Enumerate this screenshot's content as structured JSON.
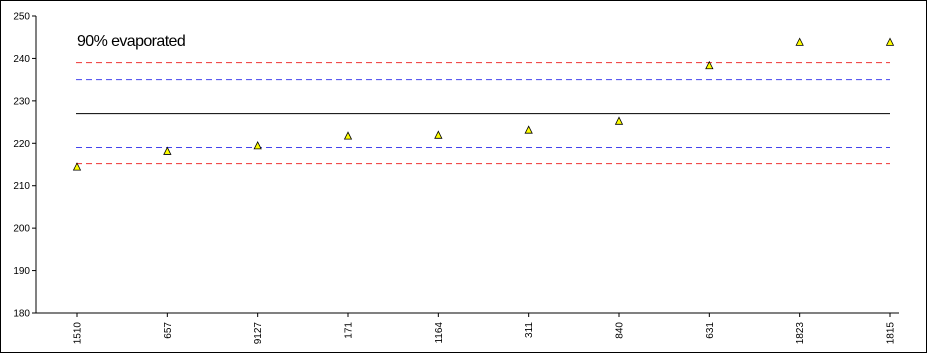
{
  "chart_data": {
    "type": "scatter",
    "annotation": "90% evaporated",
    "categories": [
      "1510",
      "657",
      "9127",
      "171",
      "1164",
      "311",
      "840",
      "631",
      "1823",
      "1815"
    ],
    "values": [
      214.5,
      218.2,
      219.5,
      221.8,
      222.0,
      223.2,
      225.3,
      238.4,
      243.9,
      243.9
    ],
    "ylim": [
      180,
      250
    ],
    "yticks": [
      180,
      190,
      200,
      210,
      220,
      230,
      240,
      250
    ],
    "xlabel": "",
    "ylabel": "",
    "grid": false,
    "reference_lines": [
      {
        "value": 227,
        "style": "solid",
        "color": "#000000"
      },
      {
        "value": 235,
        "style": "dashed",
        "color": "#4444ee"
      },
      {
        "value": 219,
        "style": "dashed",
        "color": "#4444ee"
      },
      {
        "value": 239,
        "style": "dashed",
        "color": "#ee3333"
      },
      {
        "value": 215.2,
        "style": "dashed",
        "color": "#ee3333"
      }
    ],
    "marker": {
      "shape": "triangle",
      "fill": "#ffff00",
      "stroke": "#000000"
    }
  }
}
